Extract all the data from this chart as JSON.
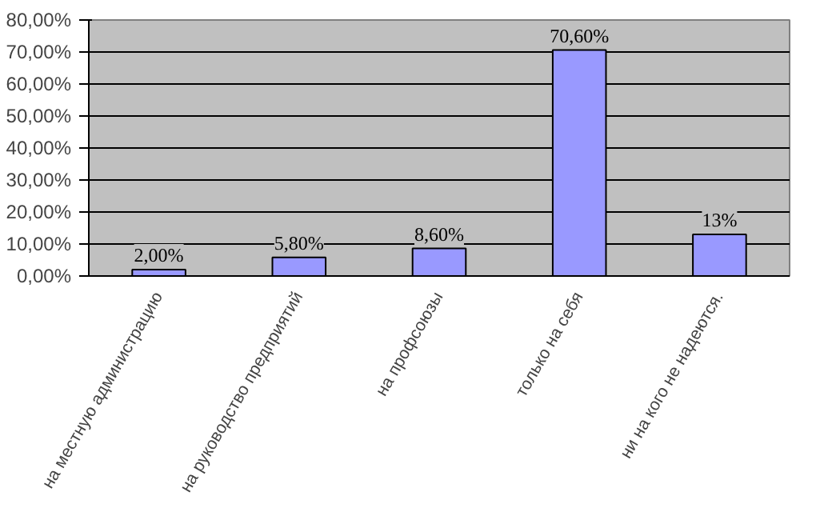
{
  "chart_data": {
    "type": "bar",
    "categories": [
      "на местную администрацию",
      "на руководство предприятий",
      "на профсоюзы",
      "только на себя",
      "ни на кого не надеются."
    ],
    "values": [
      2.0,
      5.8,
      8.6,
      70.6,
      13
    ],
    "value_labels": [
      "2,00%",
      "5,80%",
      "8,60%",
      "70,60%",
      "13%"
    ],
    "color": "#9999ff",
    "ylim": [
      0,
      80
    ],
    "yticks": [
      {
        "value": 0,
        "label": "0,00%"
      },
      {
        "value": 10,
        "label": "10,00%"
      },
      {
        "value": 20,
        "label": "20,00%"
      },
      {
        "value": 30,
        "label": "30,00%"
      },
      {
        "value": 40,
        "label": "40,00%"
      },
      {
        "value": 50,
        "label": "50,00%"
      },
      {
        "value": 60,
        "label": "60,00%"
      },
      {
        "value": 70,
        "label": "70,00%"
      },
      {
        "value": 80,
        "label": "80,00%"
      }
    ],
    "grid": "y"
  }
}
